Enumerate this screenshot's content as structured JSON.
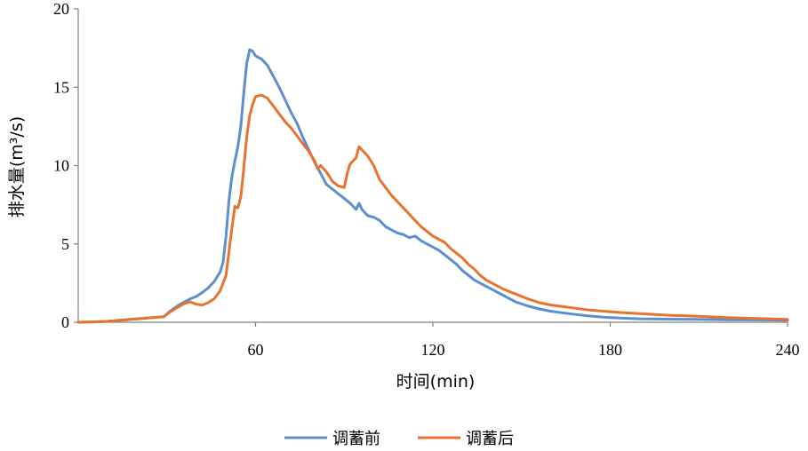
{
  "chart_data": {
    "type": "line",
    "xlabel": "时间(min)",
    "ylabel": "排水量(m³/s)",
    "xlim": [
      0,
      240
    ],
    "ylim": [
      0,
      20
    ],
    "x_ticks": [
      60,
      120,
      180,
      240
    ],
    "y_ticks": [
      0,
      5,
      10,
      15,
      20
    ],
    "grid": false,
    "legend_position": "bottom",
    "series": [
      {
        "name": "调蓄前",
        "color": "#5b8fd0",
        "points": [
          [
            0,
            0
          ],
          [
            5,
            0.02
          ],
          [
            10,
            0.06
          ],
          [
            15,
            0.14
          ],
          [
            20,
            0.22
          ],
          [
            25,
            0.3
          ],
          [
            29,
            0.35
          ],
          [
            31,
            0.7
          ],
          [
            34,
            1.1
          ],
          [
            36,
            1.3
          ],
          [
            38,
            1.5
          ],
          [
            40,
            1.65
          ],
          [
            42,
            1.9
          ],
          [
            44,
            2.2
          ],
          [
            46,
            2.6
          ],
          [
            48,
            3.2
          ],
          [
            49,
            3.8
          ],
          [
            50,
            5.5
          ],
          [
            51,
            7.8
          ],
          [
            52,
            9.3
          ],
          [
            53,
            10.3
          ],
          [
            54,
            11.2
          ],
          [
            55,
            12.5
          ],
          [
            56,
            14.6
          ],
          [
            57,
            16.5
          ],
          [
            58,
            17.4
          ],
          [
            59,
            17.3
          ],
          [
            60,
            17.0
          ],
          [
            62,
            16.8
          ],
          [
            64,
            16.4
          ],
          [
            66,
            15.7
          ],
          [
            68,
            15.0
          ],
          [
            70,
            14.2
          ],
          [
            72,
            13.4
          ],
          [
            74,
            12.7
          ],
          [
            76,
            11.8
          ],
          [
            78,
            11.0
          ],
          [
            80,
            10.2
          ],
          [
            82,
            9.5
          ],
          [
            84,
            8.8
          ],
          [
            86,
            8.5
          ],
          [
            88,
            8.2
          ],
          [
            90,
            7.9
          ],
          [
            92,
            7.6
          ],
          [
            94,
            7.2
          ],
          [
            95,
            7.6
          ],
          [
            96,
            7.2
          ],
          [
            98,
            6.8
          ],
          [
            100,
            6.7
          ],
          [
            102,
            6.5
          ],
          [
            104,
            6.1
          ],
          [
            106,
            5.9
          ],
          [
            108,
            5.7
          ],
          [
            110,
            5.6
          ],
          [
            112,
            5.4
          ],
          [
            114,
            5.5
          ],
          [
            116,
            5.2
          ],
          [
            118,
            5.0
          ],
          [
            120,
            4.8
          ],
          [
            122,
            4.6
          ],
          [
            124,
            4.3
          ],
          [
            126,
            4.0
          ],
          [
            128,
            3.7
          ],
          [
            130,
            3.3
          ],
          [
            132,
            3.0
          ],
          [
            134,
            2.7
          ],
          [
            136,
            2.5
          ],
          [
            138,
            2.3
          ],
          [
            140,
            2.1
          ],
          [
            144,
            1.7
          ],
          [
            148,
            1.3
          ],
          [
            152,
            1.05
          ],
          [
            156,
            0.85
          ],
          [
            160,
            0.7
          ],
          [
            166,
            0.55
          ],
          [
            172,
            0.42
          ],
          [
            178,
            0.32
          ],
          [
            184,
            0.26
          ],
          [
            190,
            0.22
          ],
          [
            200,
            0.2
          ],
          [
            210,
            0.18
          ],
          [
            220,
            0.16
          ],
          [
            230,
            0.15
          ],
          [
            240,
            0.13
          ]
        ]
      },
      {
        "name": "调蓄后",
        "color": "#e8732f",
        "points": [
          [
            0,
            0
          ],
          [
            5,
            0.02
          ],
          [
            10,
            0.06
          ],
          [
            15,
            0.14
          ],
          [
            20,
            0.22
          ],
          [
            25,
            0.3
          ],
          [
            29,
            0.35
          ],
          [
            31,
            0.65
          ],
          [
            34,
            1.0
          ],
          [
            36,
            1.2
          ],
          [
            38,
            1.3
          ],
          [
            40,
            1.15
          ],
          [
            42,
            1.1
          ],
          [
            44,
            1.25
          ],
          [
            46,
            1.5
          ],
          [
            48,
            2.0
          ],
          [
            50,
            3.0
          ],
          [
            51,
            4.5
          ],
          [
            52,
            6.0
          ],
          [
            53,
            7.4
          ],
          [
            54,
            7.3
          ],
          [
            55,
            8.0
          ],
          [
            56,
            9.8
          ],
          [
            57,
            11.8
          ],
          [
            58,
            13.2
          ],
          [
            59,
            13.9
          ],
          [
            60,
            14.4
          ],
          [
            62,
            14.5
          ],
          [
            64,
            14.3
          ],
          [
            66,
            13.8
          ],
          [
            68,
            13.3
          ],
          [
            70,
            12.8
          ],
          [
            72,
            12.4
          ],
          [
            74,
            11.9
          ],
          [
            76,
            11.4
          ],
          [
            78,
            10.9
          ],
          [
            80,
            10.3
          ],
          [
            81,
            9.8
          ],
          [
            82,
            10.0
          ],
          [
            84,
            9.6
          ],
          [
            86,
            9.0
          ],
          [
            88,
            8.7
          ],
          [
            90,
            8.6
          ],
          [
            91,
            9.5
          ],
          [
            92,
            10.1
          ],
          [
            94,
            10.5
          ],
          [
            95,
            11.2
          ],
          [
            96,
            11.0
          ],
          [
            98,
            10.6
          ],
          [
            100,
            10.0
          ],
          [
            102,
            9.1
          ],
          [
            104,
            8.6
          ],
          [
            106,
            8.1
          ],
          [
            108,
            7.7
          ],
          [
            110,
            7.3
          ],
          [
            112,
            6.9
          ],
          [
            114,
            6.5
          ],
          [
            116,
            6.1
          ],
          [
            118,
            5.8
          ],
          [
            120,
            5.5
          ],
          [
            122,
            5.3
          ],
          [
            124,
            5.1
          ],
          [
            126,
            4.7
          ],
          [
            128,
            4.4
          ],
          [
            130,
            4.1
          ],
          [
            132,
            3.7
          ],
          [
            134,
            3.4
          ],
          [
            136,
            3.0
          ],
          [
            138,
            2.7
          ],
          [
            140,
            2.5
          ],
          [
            144,
            2.1
          ],
          [
            148,
            1.8
          ],
          [
            152,
            1.5
          ],
          [
            156,
            1.25
          ],
          [
            160,
            1.1
          ],
          [
            166,
            0.95
          ],
          [
            172,
            0.8
          ],
          [
            178,
            0.7
          ],
          [
            184,
            0.62
          ],
          [
            190,
            0.55
          ],
          [
            200,
            0.45
          ],
          [
            210,
            0.38
          ],
          [
            220,
            0.3
          ],
          [
            230,
            0.24
          ],
          [
            240,
            0.18
          ]
        ]
      }
    ]
  }
}
